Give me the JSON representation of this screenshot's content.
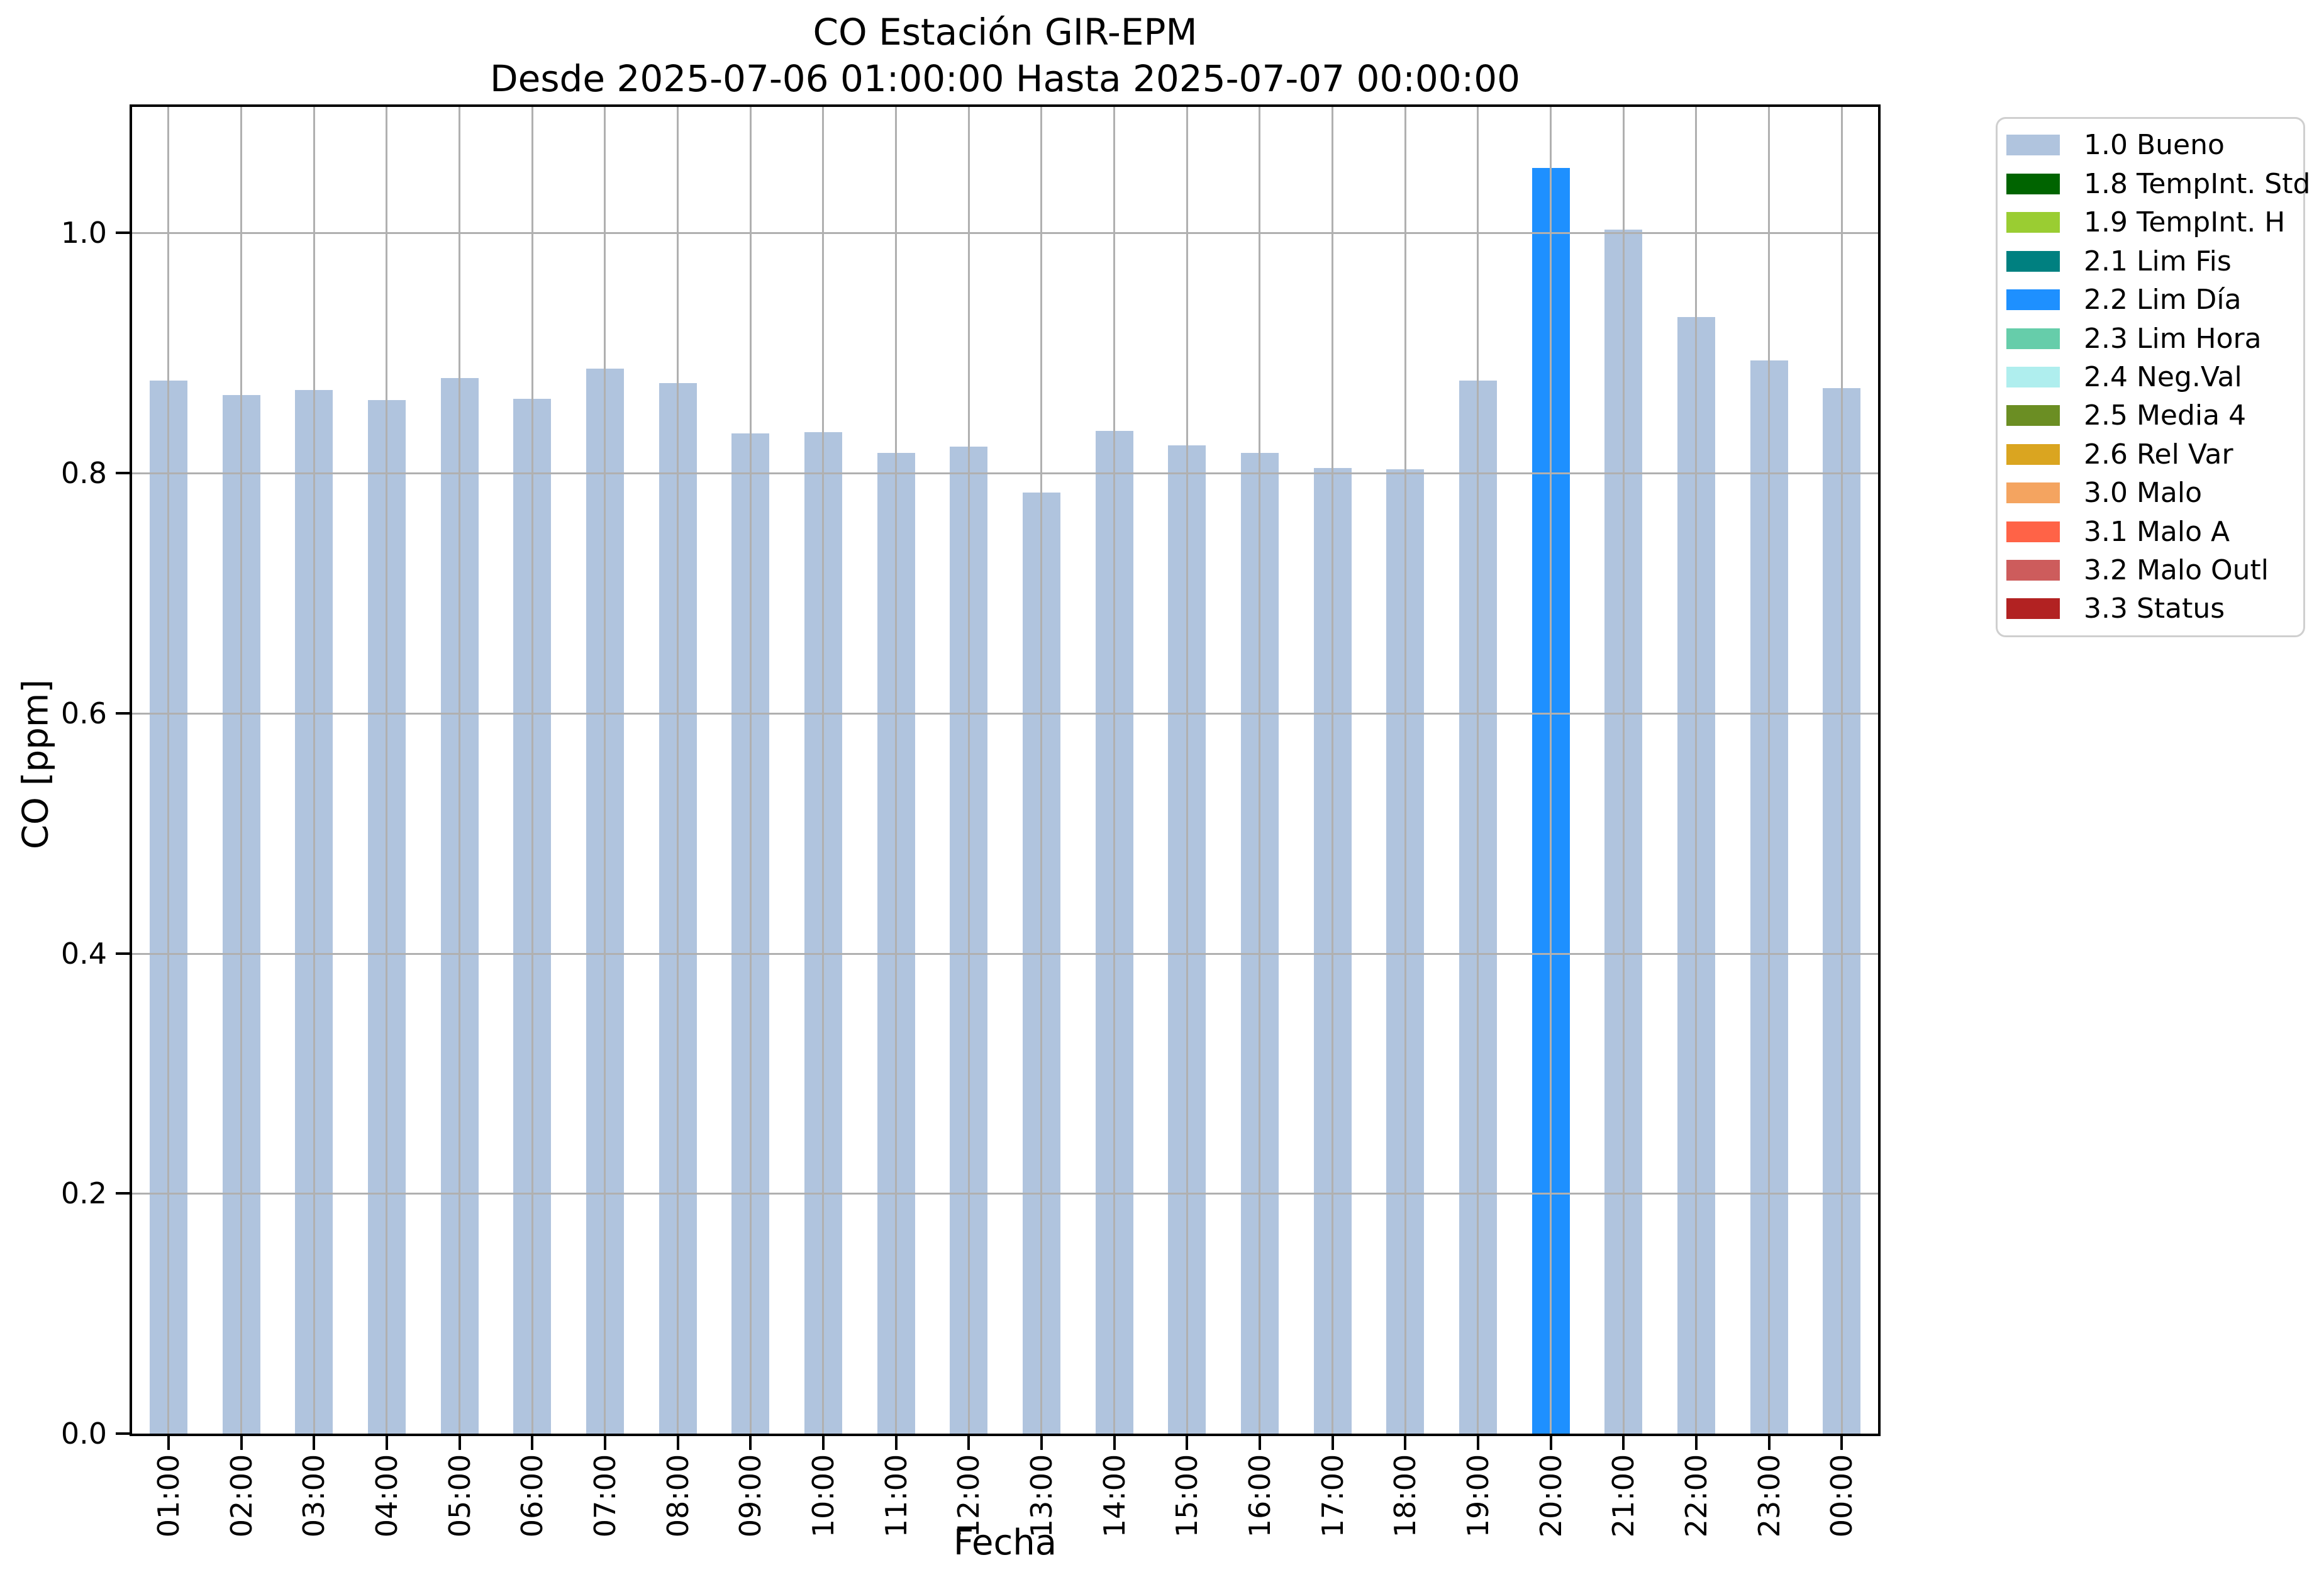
{
  "chart_data": {
    "type": "bar",
    "title": "CO Estación GIR-EPM",
    "subtitle": "Desde 2025-07-06 01:00:00 Hasta 2025-07-07 00:00:00",
    "xlabel": "Fecha",
    "ylabel": "CO [ppm]",
    "ylim": [
      0,
      1.105
    ],
    "yticks": [
      0.0,
      0.2,
      0.4,
      0.6,
      0.8,
      1.0
    ],
    "ytick_labels": [
      "0.0",
      "0.2",
      "0.4",
      "0.6",
      "0.8",
      "1.0"
    ],
    "grid": true,
    "grid_color": "#b0b0b0",
    "legend_position": "outside-upper-right",
    "categories": [
      "01:00",
      "02:00",
      "03:00",
      "04:00",
      "05:00",
      "06:00",
      "07:00",
      "08:00",
      "09:00",
      "10:00",
      "11:00",
      "12:00",
      "13:00",
      "14:00",
      "15:00",
      "16:00",
      "17:00",
      "18:00",
      "19:00",
      "20:00",
      "21:00",
      "22:00",
      "23:00",
      "00:00"
    ],
    "values": [
      0.877,
      0.865,
      0.869,
      0.861,
      0.879,
      0.862,
      0.887,
      0.875,
      0.833,
      0.834,
      0.817,
      0.822,
      0.784,
      0.835,
      0.823,
      0.817,
      0.804,
      0.803,
      0.877,
      1.054,
      1.003,
      0.93,
      0.894,
      0.871
    ],
    "bar_flags": [
      "1.0 Bueno",
      "1.0 Bueno",
      "1.0 Bueno",
      "1.0 Bueno",
      "1.0 Bueno",
      "1.0 Bueno",
      "1.0 Bueno",
      "1.0 Bueno",
      "1.0 Bueno",
      "1.0 Bueno",
      "1.0 Bueno",
      "1.0 Bueno",
      "1.0 Bueno",
      "1.0 Bueno",
      "1.0 Bueno",
      "1.0 Bueno",
      "1.0 Bueno",
      "1.0 Bueno",
      "1.0 Bueno",
      "2.2 Lim Día",
      "1.0 Bueno",
      "1.0 Bueno",
      "1.0 Bueno",
      "1.0 Bueno"
    ],
    "legend": [
      {
        "label": "1.0 Bueno",
        "color": "#b0c4de"
      },
      {
        "label": "1.8 TempInt. Std",
        "color": "#006400"
      },
      {
        "label": "1.9 TempInt. H",
        "color": "#9acd32"
      },
      {
        "label": "2.1 Lim Fis",
        "color": "#008080"
      },
      {
        "label": "2.2 Lim Día",
        "color": "#1e90ff"
      },
      {
        "label": "2.3 Lim Hora",
        "color": "#66cdaa"
      },
      {
        "label": "2.4 Neg.Val",
        "color": "#afeeee"
      },
      {
        "label": "2.5 Media 4",
        "color": "#6b8e23"
      },
      {
        "label": "2.6 Rel Var",
        "color": "#daa520"
      },
      {
        "label": "3.0 Malo",
        "color": "#f4a460"
      },
      {
        "label": "3.1 Malo A",
        "color": "#ff6347"
      },
      {
        "label": "3.2 Malo Outl",
        "color": "#cd5c5c"
      },
      {
        "label": "3.3 Status",
        "color": "#b22222"
      }
    ]
  }
}
